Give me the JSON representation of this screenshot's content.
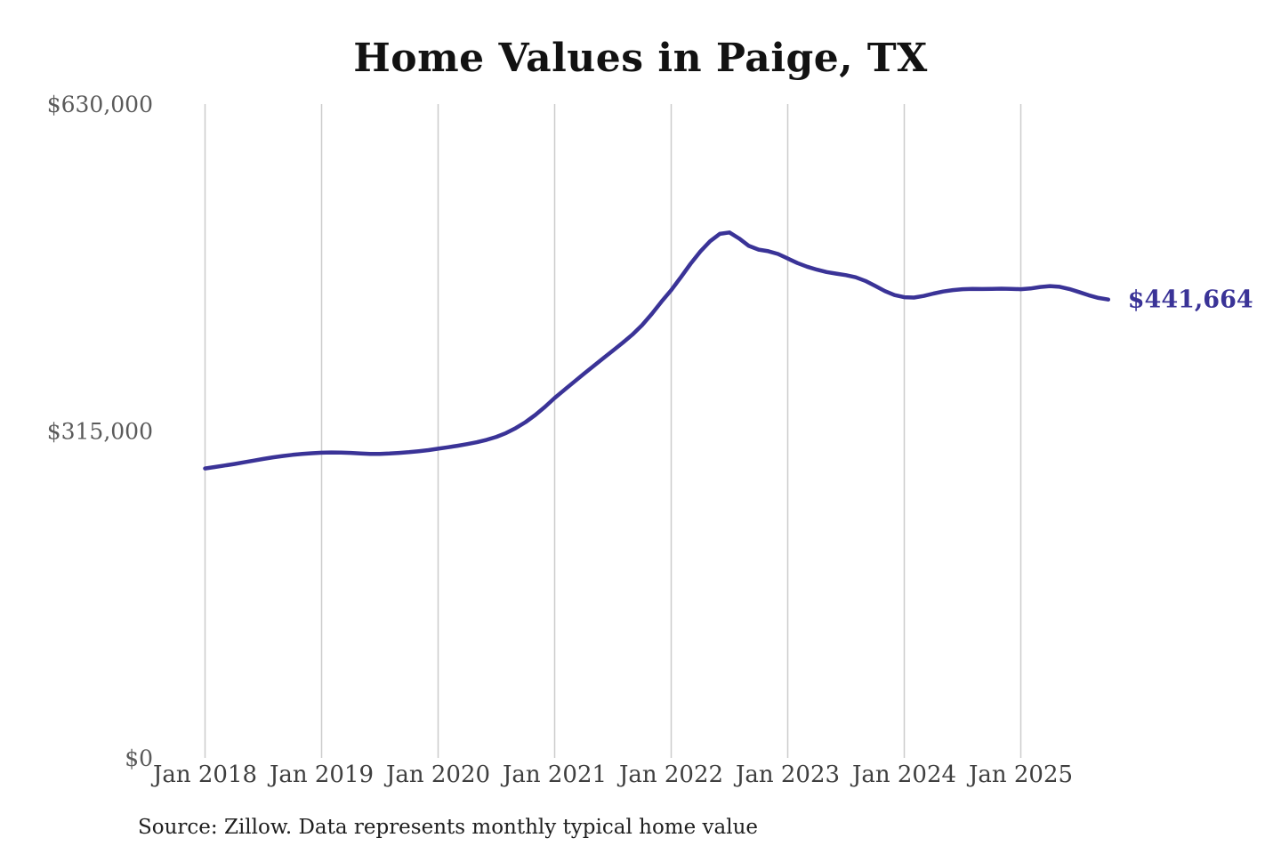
{
  "page": {
    "background_color": "#ffffff",
    "title": "Home Values in Paige, TX",
    "source_note": "Source: Zillow. Data represents monthly typical home value"
  },
  "chart_data": {
    "type": "line",
    "title": "Home Values in Paige, TX",
    "xlabel": "",
    "ylabel": "",
    "ylim": [
      0,
      630000
    ],
    "grid": "vertical-only",
    "legend": "none",
    "line_color": "#3a3397",
    "gridline_color": "#cccccc",
    "tick_label_color": "#3f3f3f",
    "y_tick_label_color": "#5a5a5a",
    "end_label": "$441,664",
    "final_value": 441664,
    "x_tick_labels": [
      "Jan 2018",
      "Jan 2019",
      "Jan 2020",
      "Jan 2021",
      "Jan 2022",
      "Jan 2023",
      "Jan 2024",
      "Jan 2025"
    ],
    "y_tick_values": [
      0,
      315000,
      630000
    ],
    "y_tick_labels": [
      "$0",
      "$315,000",
      "$630,000"
    ],
    "start_month": "2018-01",
    "end_month": "2025-10",
    "series": [
      {
        "name": "Typical home value (monthly)",
        "monthly_values": [
          278900,
          280300,
          281700,
          283200,
          284800,
          286500,
          288100,
          289600,
          290900,
          292000,
          292900,
          293600,
          294100,
          294300,
          294200,
          293900,
          293400,
          293000,
          293000,
          293300,
          293900,
          294600,
          295500,
          296600,
          297900,
          299300,
          300800,
          302400,
          304200,
          306500,
          309300,
          313000,
          317800,
          323600,
          330400,
          338200,
          346800,
          354600,
          362300,
          370000,
          377600,
          385100,
          392500,
          399900,
          407800,
          417000,
          427800,
          439600,
          450700,
          463200,
          476100,
          488000,
          497800,
          504900,
          506300,
          500500,
          493400,
          489800,
          488200,
          485600,
          481200,
          476800,
          473300,
          470500,
          468200,
          466600,
          465200,
          463100,
          459600,
          454800,
          449800,
          446000,
          443900,
          443600,
          445100,
          447400,
          449400,
          450800,
          451600,
          451900,
          451800,
          451900,
          452100,
          452000,
          451600,
          452300,
          453800,
          454600,
          453900,
          451800,
          448900,
          445800,
          443200,
          441664
        ]
      }
    ]
  }
}
